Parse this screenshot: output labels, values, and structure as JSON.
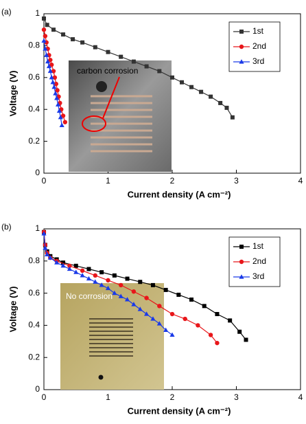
{
  "chart_data": [
    {
      "type": "line",
      "panel_label": "(a)",
      "x_label": "Current density (A cm⁻²)",
      "y_label": "Voltage (V)",
      "xlim": [
        0,
        4
      ],
      "xticks": [
        0,
        1,
        2,
        3,
        4
      ],
      "ylim": [
        0,
        1
      ],
      "yticks": [
        0,
        0.2,
        0.4,
        0.6,
        0.8,
        1
      ],
      "legend": "upper right",
      "annotation": "carbon corrosion",
      "series": [
        {
          "name": "1st",
          "color": "#333333",
          "marker": "square",
          "x": [
            0,
            0.05,
            0.15,
            0.3,
            0.45,
            0.6,
            0.8,
            1.0,
            1.2,
            1.4,
            1.6,
            1.8,
            2.0,
            2.15,
            2.3,
            2.45,
            2.6,
            2.75,
            2.85,
            2.94
          ],
          "values": [
            0.97,
            0.93,
            0.9,
            0.87,
            0.84,
            0.82,
            0.79,
            0.76,
            0.73,
            0.7,
            0.67,
            0.64,
            0.6,
            0.57,
            0.54,
            0.51,
            0.48,
            0.44,
            0.41,
            0.35
          ]
        },
        {
          "name": "2nd",
          "color": "#e8161a",
          "marker": "circle",
          "x": [
            0,
            0.02,
            0.04,
            0.06,
            0.08,
            0.1,
            0.12,
            0.15,
            0.17,
            0.19,
            0.21,
            0.23,
            0.25,
            0.27,
            0.3,
            0.33
          ],
          "values": [
            0.9,
            0.86,
            0.82,
            0.78,
            0.74,
            0.71,
            0.68,
            0.64,
            0.6,
            0.56,
            0.52,
            0.48,
            0.44,
            0.4,
            0.36,
            0.32
          ]
        },
        {
          "name": "3rd",
          "color": "#1a3ae8",
          "marker": "triangle",
          "x": [
            0,
            0.02,
            0.04,
            0.06,
            0.08,
            0.1,
            0.12,
            0.14,
            0.16,
            0.18,
            0.2,
            0.22,
            0.24,
            0.26,
            0.28
          ],
          "values": [
            0.83,
            0.78,
            0.74,
            0.7,
            0.67,
            0.64,
            0.6,
            0.57,
            0.54,
            0.5,
            0.47,
            0.43,
            0.39,
            0.35,
            0.3
          ]
        }
      ]
    },
    {
      "type": "line",
      "panel_label": "(b)",
      "x_label": "Current density (A cm⁻²)",
      "y_label": "Voltage (V)",
      "xlim": [
        0,
        4
      ],
      "xticks": [
        0,
        1,
        2,
        3,
        4
      ],
      "ylim": [
        0,
        1
      ],
      "yticks": [
        0,
        0.2,
        0.4,
        0.6,
        0.8,
        1
      ],
      "legend": "upper right",
      "annotation": "No corrosion",
      "series": [
        {
          "name": "1st",
          "color": "#000000",
          "marker": "square",
          "x": [
            0,
            0.02,
            0.05,
            0.1,
            0.2,
            0.3,
            0.5,
            0.7,
            0.9,
            1.1,
            1.3,
            1.5,
            1.7,
            1.9,
            2.1,
            2.3,
            2.5,
            2.7,
            2.9,
            3.05,
            3.15
          ],
          "values": [
            0.98,
            0.9,
            0.86,
            0.83,
            0.81,
            0.79,
            0.77,
            0.75,
            0.73,
            0.71,
            0.69,
            0.67,
            0.65,
            0.62,
            0.59,
            0.56,
            0.52,
            0.47,
            0.43,
            0.36,
            0.31
          ]
        },
        {
          "name": "2nd",
          "color": "#e8161a",
          "marker": "circle",
          "x": [
            0,
            0.02,
            0.05,
            0.1,
            0.2,
            0.4,
            0.6,
            0.8,
            1.0,
            1.2,
            1.4,
            1.6,
            1.8,
            2.0,
            2.2,
            2.4,
            2.6,
            2.7
          ],
          "values": [
            0.98,
            0.9,
            0.85,
            0.82,
            0.8,
            0.77,
            0.74,
            0.71,
            0.68,
            0.65,
            0.61,
            0.57,
            0.52,
            0.47,
            0.44,
            0.4,
            0.34,
            0.29
          ]
        },
        {
          "name": "3rd",
          "color": "#1a3ae8",
          "marker": "triangle",
          "x": [
            0,
            0.02,
            0.05,
            0.1,
            0.2,
            0.3,
            0.4,
            0.5,
            0.6,
            0.7,
            0.8,
            0.9,
            1.0,
            1.1,
            1.2,
            1.3,
            1.4,
            1.5,
            1.6,
            1.7,
            1.8,
            1.9,
            2.0
          ],
          "values": [
            0.97,
            0.88,
            0.84,
            0.82,
            0.79,
            0.77,
            0.75,
            0.73,
            0.71,
            0.69,
            0.67,
            0.65,
            0.63,
            0.6,
            0.58,
            0.56,
            0.53,
            0.5,
            0.47,
            0.44,
            0.41,
            0.37,
            0.34
          ]
        }
      ]
    }
  ]
}
